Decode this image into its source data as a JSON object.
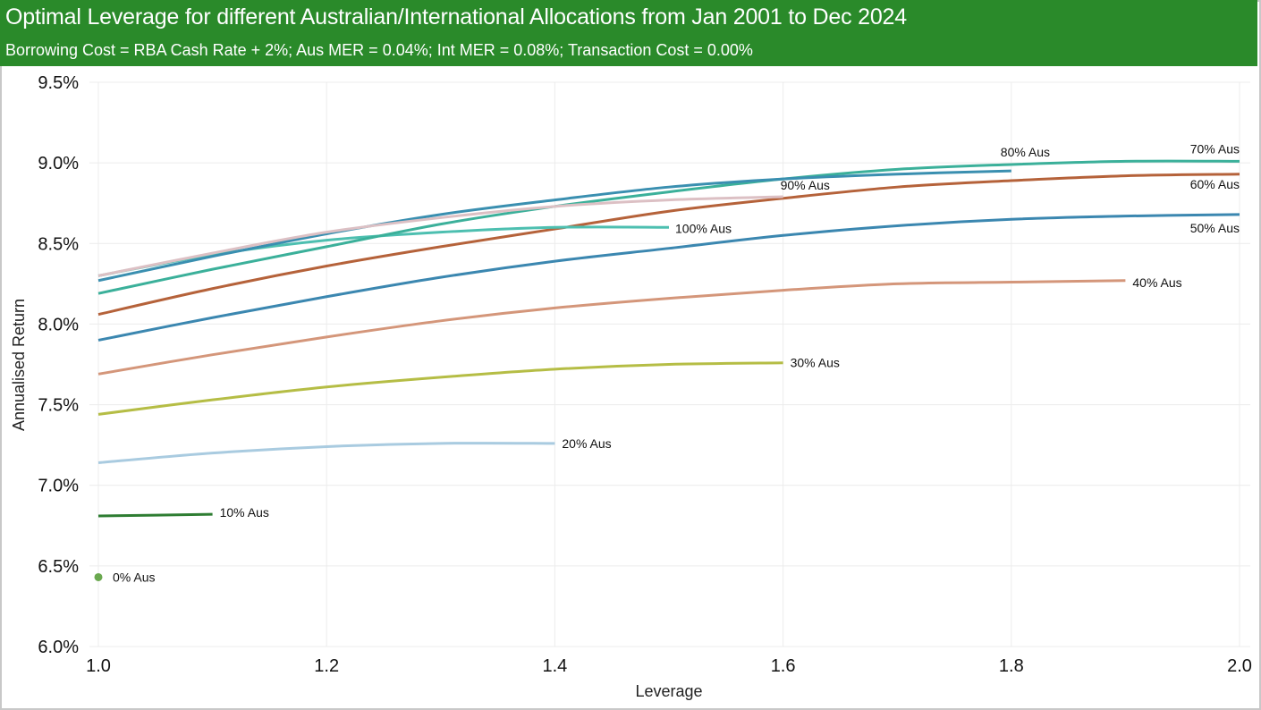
{
  "chart_data": {
    "type": "line",
    "title": "Optimal Leverage for different Australian/International Allocations from Jan 2001 to Dec 2024",
    "subtitle": "Borrowing Cost = RBA Cash Rate + 2%; Aus MER = 0.04%; Int MER = 0.08%; Transaction Cost = 0.00%",
    "xlabel": "Leverage",
    "ylabel": "Annualised Return",
    "xlim": [
      1.0,
      2.0
    ],
    "ylim": [
      6.0,
      9.5
    ],
    "x_ticks": [
      "1.0",
      "1.2",
      "1.4",
      "1.6",
      "1.8",
      "2.0"
    ],
    "x_tick_values": [
      1.0,
      1.2,
      1.4,
      1.6,
      1.8,
      2.0
    ],
    "y_ticks": [
      "6.0%",
      "6.5%",
      "7.0%",
      "7.5%",
      "8.0%",
      "8.5%",
      "9.0%",
      "9.5%"
    ],
    "y_tick_values": [
      6.0,
      6.5,
      7.0,
      7.5,
      8.0,
      8.5,
      9.0,
      9.5
    ],
    "grid": true,
    "legend": "inline labels at series ends",
    "series": [
      {
        "name": "0% Aus",
        "color": "#6aa84f",
        "marker": "dot",
        "x": [
          1.0
        ],
        "values": [
          6.43
        ]
      },
      {
        "name": "10% Aus",
        "color": "#2e7d32",
        "x": [
          1.0,
          1.1
        ],
        "values": [
          6.81,
          6.82
        ]
      },
      {
        "name": "20% Aus",
        "color": "#a9cbe0",
        "x": [
          1.0,
          1.1,
          1.2,
          1.3,
          1.4
        ],
        "values": [
          7.14,
          7.2,
          7.24,
          7.26,
          7.26
        ]
      },
      {
        "name": "30% Aus",
        "color": "#b5bd45",
        "x": [
          1.0,
          1.1,
          1.2,
          1.3,
          1.4,
          1.5,
          1.6
        ],
        "values": [
          7.44,
          7.53,
          7.61,
          7.67,
          7.72,
          7.75,
          7.76
        ]
      },
      {
        "name": "40% Aus",
        "color": "#d4967a",
        "x": [
          1.0,
          1.1,
          1.2,
          1.3,
          1.4,
          1.5,
          1.6,
          1.7,
          1.8,
          1.9
        ],
        "values": [
          7.69,
          7.81,
          7.92,
          8.02,
          8.1,
          8.16,
          8.21,
          8.25,
          8.26,
          8.27
        ]
      },
      {
        "name": "50% Aus",
        "color": "#3b87b0",
        "x": [
          1.0,
          1.1,
          1.2,
          1.3,
          1.4,
          1.5,
          1.6,
          1.7,
          1.8,
          1.9,
          2.0
        ],
        "values": [
          7.9,
          8.04,
          8.17,
          8.29,
          8.39,
          8.47,
          8.55,
          8.61,
          8.65,
          8.67,
          8.68
        ]
      },
      {
        "name": "60% Aus",
        "color": "#b5623a",
        "x": [
          1.0,
          1.1,
          1.2,
          1.3,
          1.4,
          1.5,
          1.6,
          1.7,
          1.8,
          1.9,
          2.0
        ],
        "values": [
          8.06,
          8.22,
          8.36,
          8.48,
          8.59,
          8.7,
          8.78,
          8.85,
          8.89,
          8.92,
          8.93
        ]
      },
      {
        "name": "70% Aus",
        "color": "#3bb09a",
        "x": [
          1.0,
          1.1,
          1.2,
          1.3,
          1.4,
          1.5,
          1.6,
          1.7,
          1.8,
          1.9,
          2.0
        ],
        "values": [
          8.19,
          8.34,
          8.48,
          8.62,
          8.73,
          8.82,
          8.9,
          8.96,
          8.99,
          9.01,
          9.01
        ]
      },
      {
        "name": "80% Aus",
        "color": "#3a8fb0",
        "x": [
          1.0,
          1.1,
          1.2,
          1.3,
          1.4,
          1.5,
          1.6,
          1.7,
          1.8
        ],
        "values": [
          8.27,
          8.42,
          8.56,
          8.68,
          8.77,
          8.85,
          8.9,
          8.93,
          8.95
        ]
      },
      {
        "name": "90% Aus",
        "color": "#dcc0c4",
        "x": [
          1.0,
          1.1,
          1.2,
          1.3,
          1.4,
          1.5,
          1.6
        ],
        "values": [
          8.3,
          8.44,
          8.57,
          8.66,
          8.73,
          8.77,
          8.79
        ]
      },
      {
        "name": "100% Aus",
        "color": "#4dbfb0",
        "x": [
          1.0,
          1.1,
          1.2,
          1.3,
          1.4,
          1.5
        ],
        "values": [
          8.3,
          8.43,
          8.52,
          8.57,
          8.6,
          8.6
        ]
      }
    ]
  }
}
